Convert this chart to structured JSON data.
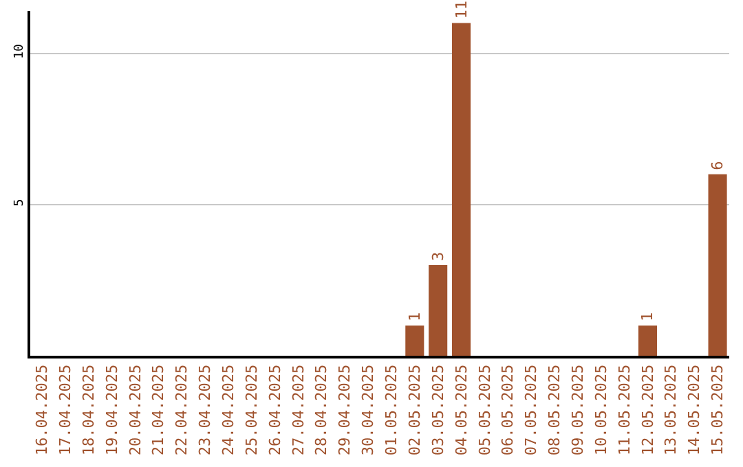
{
  "chart_data": {
    "type": "bar",
    "categories": [
      "16.04.2025",
      "17.04.2025",
      "18.04.2025",
      "19.04.2025",
      "20.04.2025",
      "21.04.2025",
      "22.04.2025",
      "23.04.2025",
      "24.04.2025",
      "25.04.2025",
      "26.04.2025",
      "27.04.2025",
      "28.04.2025",
      "29.04.2025",
      "30.04.2025",
      "01.05.2025",
      "02.05.2025",
      "03.05.2025",
      "04.05.2025",
      "05.05.2025",
      "06.05.2025",
      "07.05.2025",
      "08.05.2025",
      "09.05.2025",
      "10.05.2025",
      "11.05.2025",
      "12.05.2025",
      "13.05.2025",
      "14.05.2025",
      "15.05.2025"
    ],
    "values": [
      0,
      0,
      0,
      0,
      0,
      0,
      0,
      0,
      0,
      0,
      0,
      0,
      0,
      0,
      0,
      0,
      1,
      3,
      11,
      0,
      0,
      0,
      0,
      0,
      0,
      0,
      1,
      0,
      0,
      6
    ],
    "value_labels": [
      null,
      null,
      null,
      null,
      null,
      null,
      null,
      null,
      null,
      null,
      null,
      null,
      null,
      null,
      null,
      null,
      "1",
      "3",
      "11",
      null,
      null,
      null,
      null,
      null,
      null,
      null,
      "1",
      null,
      null,
      "6"
    ],
    "color": "#a0522d",
    "ylim": [
      0,
      11.4
    ],
    "yticks": [
      5,
      10
    ],
    "grid": "y",
    "legend": false
  }
}
